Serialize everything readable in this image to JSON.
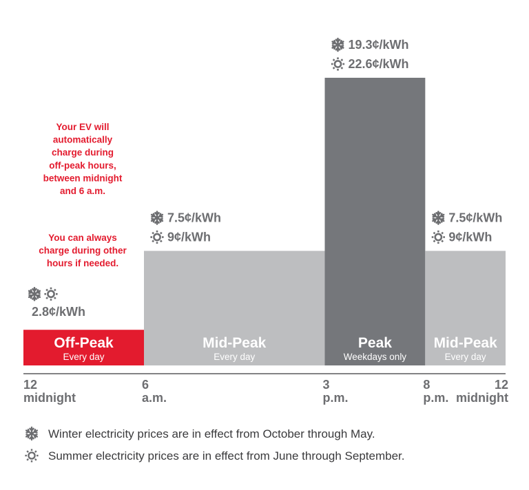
{
  "chart_data": {
    "type": "bar",
    "title": "",
    "xlabel": "",
    "ylabel": "",
    "x_ticks": [
      {
        "value": 0,
        "line1": "12",
        "line2": "midnight"
      },
      {
        "value": 6,
        "line1": "6",
        "line2": "a.m."
      },
      {
        "value": 15,
        "line1": "3",
        "line2": "p.m."
      },
      {
        "value": 20,
        "line1": "8",
        "line2": "p.m."
      },
      {
        "value": 24,
        "line1": "12",
        "line2": "midnight"
      }
    ],
    "xlim": [
      0,
      24
    ],
    "ylim": [
      0,
      22.6
    ],
    "units": "¢/kWh",
    "value_series": "summer",
    "periods": [
      {
        "name": "Off-Peak",
        "subtitle": "Every day",
        "start": 0,
        "end": 6,
        "winter": 2.8,
        "summer": 2.8,
        "winter_label": "",
        "summer_label": "",
        "combined_label": "2.8¢/kWh",
        "color": "#e31b2e"
      },
      {
        "name": "Mid-Peak",
        "subtitle": "Every day",
        "start": 6,
        "end": 15,
        "winter": 7.5,
        "summer": 9,
        "winter_label": "7.5¢/kWh",
        "summer_label": "9¢/kWh",
        "combined_label": "",
        "color": "#bdbec0"
      },
      {
        "name": "Peak",
        "subtitle": "Weekdays only",
        "start": 15,
        "end": 20,
        "winter": 19.3,
        "summer": 22.6,
        "winter_label": "19.3¢/kWh",
        "summer_label": "22.6¢/kWh",
        "combined_label": "",
        "color": "#75777b"
      },
      {
        "name": "Mid-Peak",
        "subtitle": "Every day",
        "start": 20,
        "end": 24,
        "winter": 7.5,
        "summer": 9,
        "winter_label": "7.5¢/kWh",
        "summer_label": "9¢/kWh",
        "combined_label": "",
        "color": "#bdbec0"
      }
    ],
    "annotations": [
      {
        "lines": [
          "Your EV will",
          "automatically",
          "charge during",
          "off-peak hours,",
          "between midnight",
          "and 6 a.m."
        ]
      },
      {
        "lines": [
          "You can always",
          "charge during other",
          "hours if needed."
        ]
      }
    ],
    "legend": [
      {
        "icon": "snowflake-icon",
        "text": "Winter electricity prices are in effect from October through May."
      },
      {
        "icon": "sun-icon",
        "text": "Summer electricity prices are in effect from June through September."
      }
    ],
    "colors": {
      "accent_red": "#e31b2e",
      "label_gray": "#6d6e71",
      "legend_text": "#3a3a3c",
      "axis": "#58595b"
    }
  }
}
